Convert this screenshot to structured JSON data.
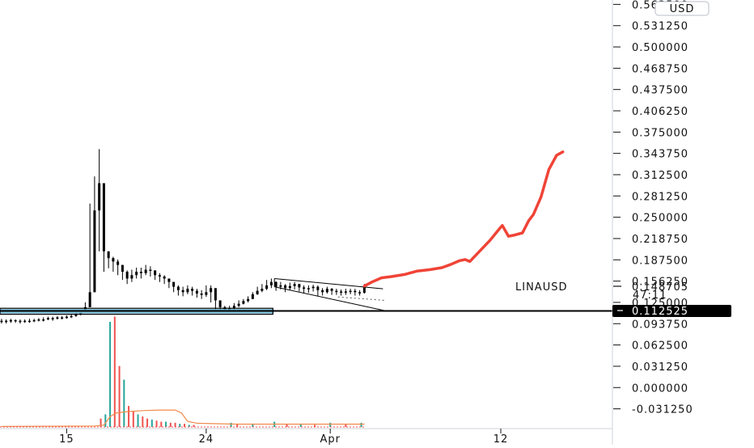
{
  "chart_data": {
    "type": "candlestick",
    "symbol": "LINAUSD",
    "currency_button": "USD",
    "y_axis": {
      "labels": [
        "0.562500",
        "0.531250",
        "0.500000",
        "0.468750",
        "0.437500",
        "0.406250",
        "0.375000",
        "0.343750",
        "0.312500",
        "0.281250",
        "0.250000",
        "0.218750",
        "0.187500",
        "0.156250",
        "0.125000",
        "0.093750",
        "0.062500",
        "0.031250",
        "0.000000",
        "-0.031250"
      ],
      "values": [
        0.5625,
        0.53125,
        0.5,
        0.46875,
        0.4375,
        0.40625,
        0.375,
        0.34375,
        0.3125,
        0.28125,
        0.25,
        0.21875,
        0.1875,
        0.15625,
        0.125,
        0.09375,
        0.0625,
        0.03125,
        0.0,
        -0.03125
      ],
      "range": [
        -0.04,
        0.57
      ]
    },
    "x_axis": {
      "ticks": [
        {
          "label": "15",
          "day": 15
        },
        {
          "label": "24",
          "day": 24
        },
        {
          "label": "Apr",
          "day": 32
        },
        {
          "label": "12",
          "day": 43
        }
      ],
      "range_days": [
        10.7,
        50.2
      ]
    },
    "current_price": {
      "label": "LINAUSD",
      "value": "0.148705",
      "countdown": "47:11"
    },
    "horizontal_level": {
      "value": 0.112525,
      "label": "0.112525"
    },
    "price_series": {
      "days": [
        10.8,
        11.1,
        11.4,
        11.7,
        12,
        12.3,
        12.6,
        12.9,
        13.2,
        13.5,
        13.8,
        14.1,
        14.4,
        14.7,
        15,
        15.3,
        15.6,
        15.9,
        16.2,
        16.5,
        16.8,
        17.1,
        17.4,
        17.7,
        18,
        18.3,
        18.6,
        18.9,
        19.2,
        19.5,
        19.8,
        20.1,
        20.4,
        20.7,
        21,
        21.3,
        21.6,
        21.9,
        22.2,
        22.5,
        22.8,
        23.1,
        23.4,
        23.7,
        24,
        24.3,
        24.6,
        24.9,
        25.2,
        25.5,
        25.8,
        26.1,
        26.4,
        26.7,
        27,
        27.3,
        27.6,
        27.9,
        28.2,
        28.5,
        28.8,
        29.1,
        29.4,
        29.7,
        30,
        30.3,
        30.6,
        30.9,
        31.2,
        31.5,
        31.8,
        32.1,
        32.4,
        32.7,
        33,
        33.3,
        33.6,
        33.9,
        34.2
      ],
      "close": [
        0.098,
        0.097,
        0.099,
        0.098,
        0.097,
        0.098,
        0.098,
        0.099,
        0.1,
        0.1,
        0.102,
        0.101,
        0.103,
        0.102,
        0.104,
        0.105,
        0.107,
        0.11,
        0.118,
        0.14,
        0.26,
        0.3,
        0.2,
        0.19,
        0.185,
        0.18,
        0.17,
        0.16,
        0.165,
        0.17,
        0.168,
        0.173,
        0.172,
        0.165,
        0.163,
        0.16,
        0.155,
        0.148,
        0.143,
        0.14,
        0.145,
        0.142,
        0.138,
        0.136,
        0.14,
        0.146,
        0.128,
        0.118,
        0.115,
        0.116,
        0.12,
        0.123,
        0.127,
        0.13,
        0.137,
        0.142,
        0.145,
        0.15,
        0.155,
        0.148,
        0.15,
        0.146,
        0.149,
        0.152,
        0.147,
        0.145,
        0.146,
        0.148,
        0.143,
        0.14,
        0.145,
        0.142,
        0.141,
        0.14,
        0.141,
        0.142,
        0.14,
        0.139,
        0.149
      ],
      "high": [
        0.101,
        0.1,
        0.101,
        0.1,
        0.1,
        0.1,
        0.101,
        0.101,
        0.102,
        0.103,
        0.104,
        0.104,
        0.105,
        0.105,
        0.106,
        0.108,
        0.11,
        0.114,
        0.125,
        0.27,
        0.31,
        0.35,
        0.22,
        0.2,
        0.192,
        0.188,
        0.18,
        0.172,
        0.173,
        0.176,
        0.176,
        0.18,
        0.178,
        0.172,
        0.168,
        0.165,
        0.16,
        0.155,
        0.15,
        0.148,
        0.15,
        0.148,
        0.145,
        0.143,
        0.15,
        0.15,
        0.135,
        0.124,
        0.12,
        0.12,
        0.124,
        0.128,
        0.13,
        0.134,
        0.14,
        0.148,
        0.152,
        0.158,
        0.16,
        0.156,
        0.155,
        0.152,
        0.154,
        0.155,
        0.152,
        0.15,
        0.15,
        0.151,
        0.15,
        0.146,
        0.148,
        0.146,
        0.145,
        0.144,
        0.145,
        0.145,
        0.145,
        0.143,
        0.152
      ],
      "low": [
        0.094,
        0.094,
        0.095,
        0.095,
        0.094,
        0.095,
        0.095,
        0.096,
        0.097,
        0.097,
        0.099,
        0.098,
        0.1,
        0.1,
        0.101,
        0.102,
        0.104,
        0.106,
        0.11,
        0.118,
        0.14,
        0.2,
        0.17,
        0.175,
        0.17,
        0.165,
        0.158,
        0.152,
        0.155,
        0.16,
        0.16,
        0.165,
        0.163,
        0.158,
        0.155,
        0.152,
        0.146,
        0.14,
        0.135,
        0.134,
        0.137,
        0.135,
        0.132,
        0.13,
        0.133,
        0.125,
        0.112,
        0.11,
        0.11,
        0.111,
        0.114,
        0.118,
        0.122,
        0.125,
        0.13,
        0.136,
        0.14,
        0.143,
        0.146,
        0.142,
        0.144,
        0.14,
        0.143,
        0.144,
        0.141,
        0.138,
        0.139,
        0.141,
        0.134,
        0.135,
        0.138,
        0.136,
        0.136,
        0.135,
        0.136,
        0.137,
        0.135,
        0.135,
        0.138
      ]
    },
    "volume": {
      "bars": [
        {
          "day": 17.2,
          "value": 0.08,
          "color": "#ef5350"
        },
        {
          "day": 17.5,
          "value": 0.12,
          "color": "#26a69a"
        },
        {
          "day": 17.8,
          "value": 1.0,
          "color": "#26a69a"
        },
        {
          "day": 18.1,
          "value": 1.05,
          "color": "#ef5350"
        },
        {
          "day": 18.4,
          "value": 0.58,
          "color": "#ef5350"
        },
        {
          "day": 18.7,
          "value": 0.45,
          "color": "#26a69a"
        },
        {
          "day": 19.0,
          "value": 0.2,
          "color": "#ef5350"
        },
        {
          "day": 19.3,
          "value": 0.15,
          "color": "#ef5350"
        },
        {
          "day": 19.6,
          "value": 0.12,
          "color": "#26a69a"
        },
        {
          "day": 19.9,
          "value": 0.1,
          "color": "#ef5350"
        },
        {
          "day": 20.2,
          "value": 0.08,
          "color": "#ef5350"
        },
        {
          "day": 20.5,
          "value": 0.07,
          "color": "#26a69a"
        },
        {
          "day": 20.8,
          "value": 0.06,
          "color": "#ef5350"
        },
        {
          "day": 21.1,
          "value": 0.05,
          "color": "#ef5350"
        },
        {
          "day": 21.4,
          "value": 0.05,
          "color": "#26a69a"
        },
        {
          "day": 21.7,
          "value": 0.04,
          "color": "#ef5350"
        },
        {
          "day": 22.0,
          "value": 0.04,
          "color": "#ef5350"
        },
        {
          "day": 22.3,
          "value": 0.03,
          "color": "#26a69a"
        },
        {
          "day": 22.6,
          "value": 0.03,
          "color": "#ef5350"
        },
        {
          "day": 22.9,
          "value": 0.02,
          "color": "#26a69a"
        },
        {
          "day": 23.2,
          "value": 0.02,
          "color": "#ef5350"
        },
        {
          "day": 25.6,
          "value": 0.04,
          "color": "#26a69a"
        },
        {
          "day": 26.0,
          "value": 0.03,
          "color": "#ef5350"
        },
        {
          "day": 27.0,
          "value": 0.03,
          "color": "#26a69a"
        },
        {
          "day": 28.4,
          "value": 0.05,
          "color": "#26a69a"
        },
        {
          "day": 29.2,
          "value": 0.03,
          "color": "#ef5350"
        },
        {
          "day": 30.1,
          "value": 0.03,
          "color": "#26a69a"
        },
        {
          "day": 31.0,
          "value": 0.02,
          "color": "#ef5350"
        },
        {
          "day": 32.0,
          "value": 0.04,
          "color": "#26a69a"
        },
        {
          "day": 33.0,
          "value": 0.03,
          "color": "#ef5350"
        },
        {
          "day": 34.0,
          "value": 0.04,
          "color": "#26a69a"
        }
      ],
      "ma_days": [
        10.8,
        16.8,
        17.4,
        17.8,
        18.2,
        19,
        20,
        21,
        22,
        22.4,
        22.8,
        23.4,
        24.5,
        26,
        28,
        30,
        32,
        34.2
      ],
      "ma_values": [
        0.01,
        0.02,
        0.04,
        0.22,
        0.3,
        0.33,
        0.35,
        0.36,
        0.36,
        0.3,
        0.12,
        0.08,
        0.07,
        0.06,
        0.06,
        0.06,
        0.06,
        0.06
      ]
    },
    "annotations": {
      "projection_days": [
        34.2,
        34.7,
        35.3,
        36,
        36.8,
        37.6,
        38.4,
        39.2,
        39.8,
        40.3,
        40.7,
        41,
        41.5,
        42.3,
        42.8,
        43.1,
        43.5,
        43.9,
        44.4,
        44.8,
        45.1,
        45.6,
        46.1,
        46.6,
        47
      ],
      "projection_values": [
        0.149,
        0.155,
        0.161,
        0.163,
        0.166,
        0.171,
        0.173,
        0.176,
        0.181,
        0.186,
        0.188,
        0.185,
        0.197,
        0.216,
        0.23,
        0.238,
        0.222,
        0.224,
        0.227,
        0.245,
        0.254,
        0.28,
        0.32,
        0.341,
        0.346
      ],
      "projection_color": "#ef4437",
      "channel_upper": [
        {
          "day": 28.4,
          "value": 0.16
        },
        {
          "day": 35.4,
          "value": 0.145
        }
      ],
      "channel_lower": [
        {
          "day": 28.4,
          "value": 0.148
        },
        {
          "day": 35.7,
          "value": 0.112
        }
      ],
      "dotted_target": [
        {
          "day": 32.5,
          "value": 0.133
        },
        {
          "day": 35.5,
          "value": 0.128
        }
      ],
      "base_box": {
        "day_start": 10.7,
        "day_end": 28.3,
        "high": 0.114,
        "low": 0.11,
        "color": "#6fb9d6"
      }
    }
  }
}
